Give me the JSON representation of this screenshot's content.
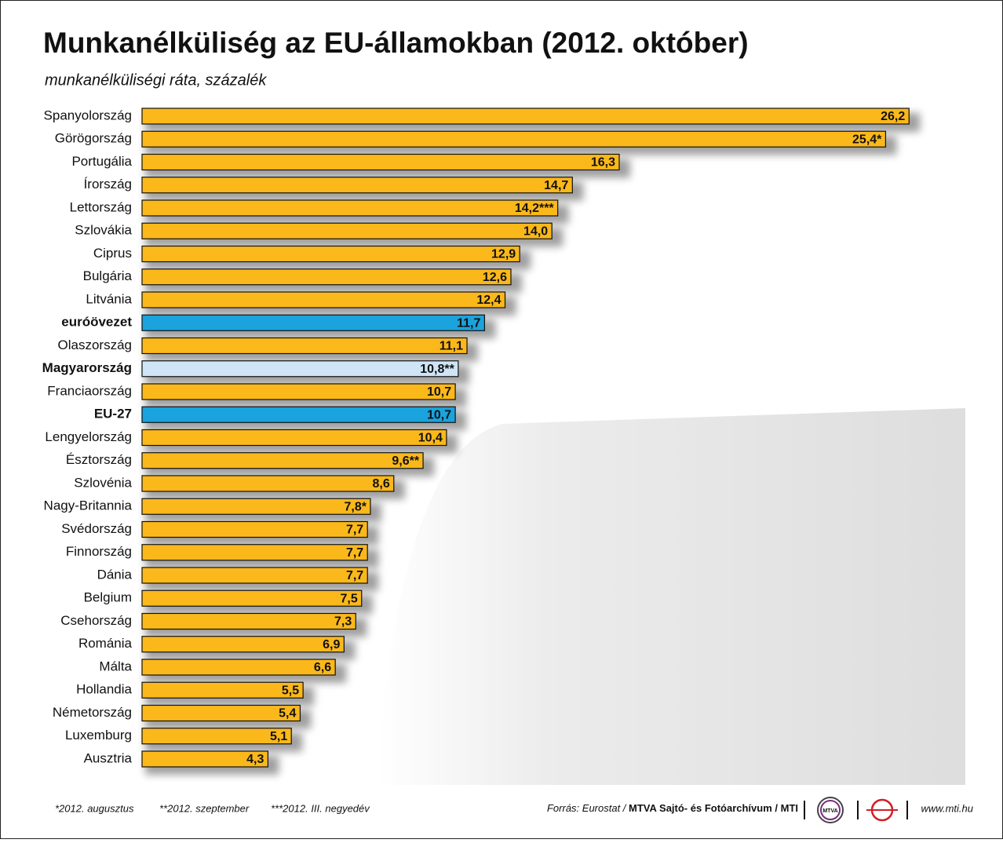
{
  "chart_data": {
    "type": "bar",
    "title": "Munkanélküliség az EU-államokban (2012. október)",
    "subtitle": "munkanélküliségi ráta, százalék",
    "categories": [
      "Spanyolország",
      "Görögország",
      "Portugália",
      "Írország",
      "Lettország",
      "Szlovákia",
      "Ciprus",
      "Bulgária",
      "Litvánia",
      "euróövezet",
      "Olaszország",
      "Magyarország",
      "Franciaország",
      "EU-27",
      "Lengyelország",
      "Észtország",
      "Szlovénia",
      "Nagy-Britannia",
      "Svédország",
      "Finnország",
      "Dánia",
      "Belgium",
      "Csehország",
      "Románia",
      "Málta",
      "Hollandia",
      "Németország",
      "Luxemburg",
      "Ausztria"
    ],
    "values": [
      26.2,
      25.4,
      16.3,
      14.7,
      14.2,
      14.0,
      12.9,
      12.6,
      12.4,
      11.7,
      11.1,
      10.8,
      10.7,
      10.7,
      10.4,
      9.6,
      8.6,
      7.8,
      7.7,
      7.7,
      7.7,
      7.5,
      7.3,
      6.9,
      6.6,
      5.5,
      5.4,
      5.1,
      4.3
    ],
    "value_labels": [
      "26,2",
      "25,4*",
      "16,3",
      "14,7",
      "14,2***",
      "14,0",
      "12,9",
      "12,6",
      "12,4",
      "11,7",
      "11,1",
      "10,8**",
      "10,7",
      "10,7",
      "10,4",
      "9,6**",
      "8,6",
      "7,8*",
      "7,7",
      "7,7",
      "7,7",
      "7,5",
      "7,3",
      "6,9",
      "6,6",
      "5,5",
      "5,4",
      "5,1",
      "4,3"
    ],
    "color": "#fbb81b",
    "colors": [
      "#fbb81b",
      "#fbb81b",
      "#fbb81b",
      "#fbb81b",
      "#fbb81b",
      "#fbb81b",
      "#fbb81b",
      "#fbb81b",
      "#fbb81b",
      "#1aa3dc",
      "#fbb81b",
      "#cfe5f7",
      "#fbb81b",
      "#1aa3dc",
      "#fbb81b",
      "#fbb81b",
      "#fbb81b",
      "#fbb81b",
      "#fbb81b",
      "#fbb81b",
      "#fbb81b",
      "#fbb81b",
      "#fbb81b",
      "#fbb81b",
      "#fbb81b",
      "#fbb81b",
      "#fbb81b",
      "#fbb81b",
      "#fbb81b"
    ],
    "footnotes": [
      "*2012. augusztus",
      "**2012. szeptember",
      "***2012. III. negyedév"
    ],
    "source_prefix": "Forrás: Eurostat / ",
    "source_bold": "MTVA Sajtó- és Fotóarchívum / MTI",
    "logo": "MTVA",
    "website": "www.mti.hu"
  }
}
